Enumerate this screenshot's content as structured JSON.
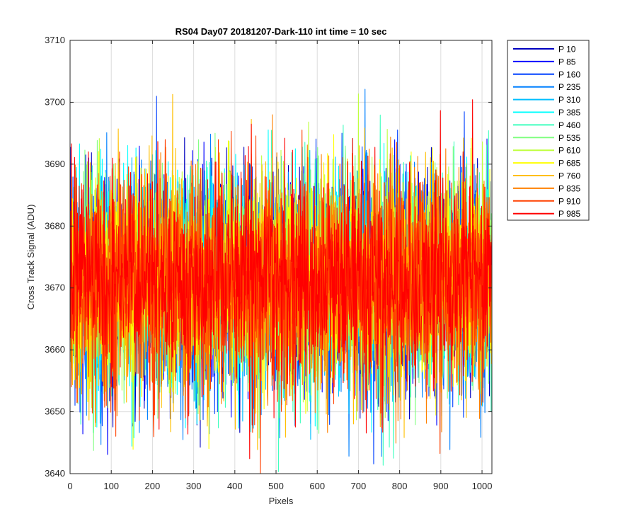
{
  "chart_data": {
    "type": "line",
    "title": "RS04 Day07 20181207-Dark-110 int time = 10 sec",
    "xlabel": "Pixels",
    "ylabel": "Cross Track Signal (ADU)",
    "xlim": [
      0,
      1024
    ],
    "ylim": [
      3640,
      3710
    ],
    "xticks": [
      0,
      100,
      200,
      300,
      400,
      500,
      600,
      700,
      800,
      900,
      1000
    ],
    "yticks": [
      3640,
      3650,
      3660,
      3670,
      3680,
      3690,
      3700,
      3710
    ],
    "grid": true,
    "legend_position": "outside-top-right",
    "series": [
      {
        "name": "P 10",
        "color": "#0000bf",
        "mean": 3671,
        "noise": 8.5
      },
      {
        "name": "P 85",
        "color": "#0000ff",
        "mean": 3671,
        "noise": 8.5
      },
      {
        "name": "P 160",
        "color": "#0040ff",
        "mean": 3671,
        "noise": 8.5
      },
      {
        "name": "P 235",
        "color": "#0080ff",
        "mean": 3671,
        "noise": 8.5
      },
      {
        "name": "P 310",
        "color": "#00bfff",
        "mean": 3671,
        "noise": 8.5
      },
      {
        "name": "P 385",
        "color": "#00ffff",
        "mean": 3671,
        "noise": 8.5
      },
      {
        "name": "P 460",
        "color": "#40ffbf",
        "mean": 3671,
        "noise": 8.5
      },
      {
        "name": "P 535",
        "color": "#80ff80",
        "mean": 3671,
        "noise": 8.5
      },
      {
        "name": "P 610",
        "color": "#bfff40",
        "mean": 3671,
        "noise": 8.5
      },
      {
        "name": "P 685",
        "color": "#ffff00",
        "mean": 3671,
        "noise": 8.5
      },
      {
        "name": "P 760",
        "color": "#ffbf00",
        "mean": 3671,
        "noise": 8.5
      },
      {
        "name": "P 835",
        "color": "#ff8000",
        "mean": 3671,
        "noise": 8.5
      },
      {
        "name": "P 910",
        "color": "#ff4000",
        "mean": 3671,
        "noise": 8.5
      },
      {
        "name": "P 985",
        "color": "#ff0000",
        "mean": 3671,
        "noise": 8.5
      }
    ],
    "n_points": 1024
  }
}
